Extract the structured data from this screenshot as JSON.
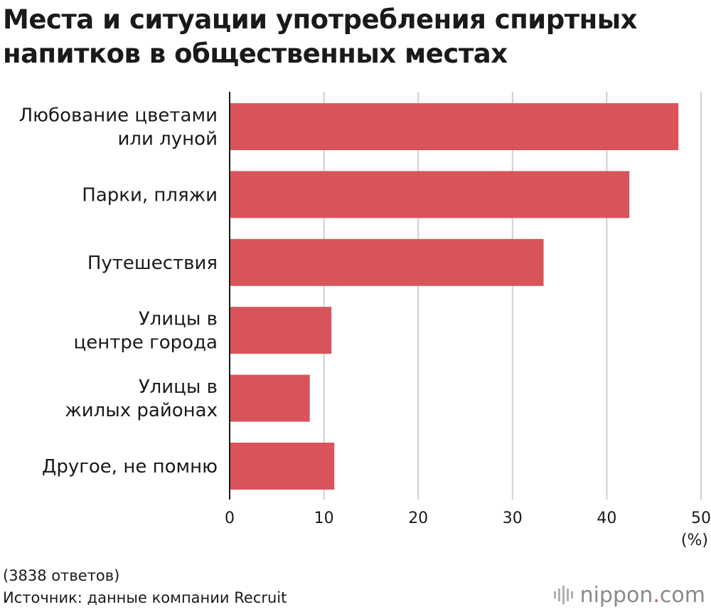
{
  "title": "Места и ситуации употребления спиртных напитков в общественных местах",
  "chart_data": {
    "type": "bar",
    "orientation": "horizontal",
    "title": "Места и ситуации употребления спиртных напитков в общественных местах",
    "categories": [
      [
        "Любование цветами",
        "или луной"
      ],
      [
        "Парки, пляжи"
      ],
      [
        "Путешествия"
      ],
      [
        "Улицы в",
        "центре города"
      ],
      [
        "Улицы в",
        "жилых районах"
      ],
      [
        "Другое, не помню"
      ]
    ],
    "values": [
      47.6,
      42.4,
      33.3,
      10.8,
      8.5,
      11.1
    ],
    "xlim": [
      0,
      50
    ],
    "xticks": [
      0,
      10,
      20,
      30,
      40,
      50
    ],
    "xunit": "(%)",
    "bar_color": "#d9545a",
    "grid": true
  },
  "footer": {
    "responses": "(3838 ответов)",
    "source": "Источник: данные компании Recruit"
  },
  "logo": {
    "brand": "nippon",
    "dot": ".",
    "domain": "com"
  }
}
